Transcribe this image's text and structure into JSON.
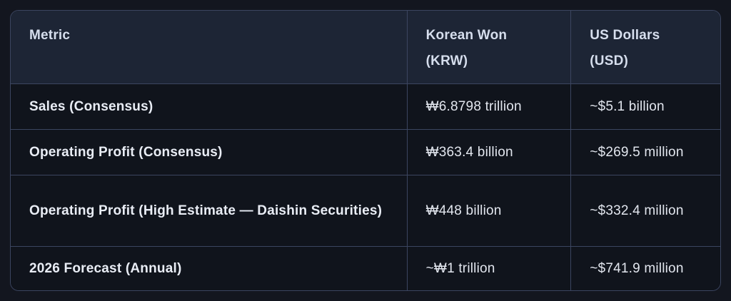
{
  "theme": {
    "page-bg": "#13161f",
    "header-bg": "#1d2535",
    "row-bg": "#10141c",
    "border": "#3b4560",
    "header-text": "#d6deed",
    "label-text": "#e9edf5",
    "value-text": "#e2e6ee"
  },
  "table": {
    "headers": {
      "metric": [
        "Metric"
      ],
      "krw": [
        "Korean Won",
        "(KRW)"
      ],
      "usd": [
        "US Dollars",
        "(USD)"
      ]
    },
    "rows": [
      {
        "metric": "Sales (Consensus)",
        "krw": "₩6.8798 trillion",
        "usd": "~$5.1 billion"
      },
      {
        "metric": "Operating Profit (Consensus)",
        "krw": "₩363.4 billion",
        "usd": "~$269.5 million"
      },
      {
        "metric": "Operating Profit (High Estimate — Daishin Securities)",
        "krw": "₩448 billion",
        "usd": "~$332.4 million"
      },
      {
        "metric": "2026 Forecast (Annual)",
        "krw": "~₩1 trillion",
        "usd": "~$741.9 million"
      }
    ]
  }
}
